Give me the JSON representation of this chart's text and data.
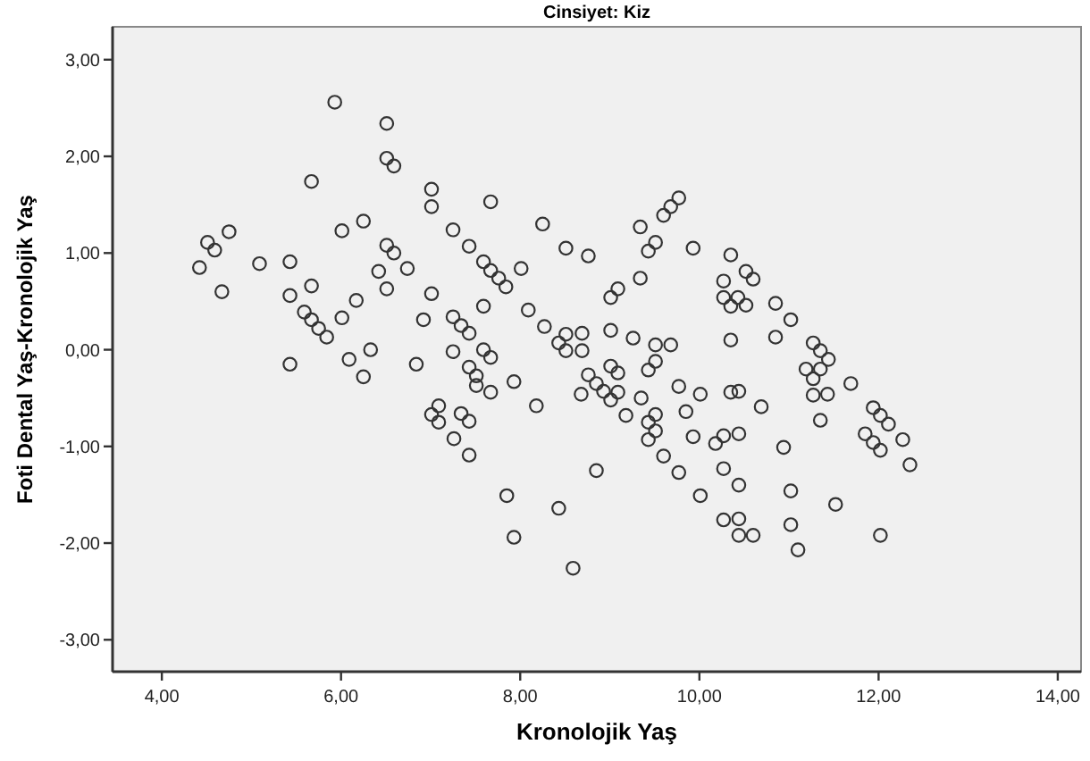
{
  "chart_data": {
    "type": "scatter",
    "title": "Cinsiyet: Kiz",
    "xlabel": "Kronolojik Yaş",
    "ylabel": "Foti Dental Yaş-Kronolojik Yaş",
    "marker": "circle",
    "grid": false,
    "xlim": [
      3.45,
      14.26
    ],
    "ylim": [
      -3.33,
      3.34
    ],
    "xticks": [
      {
        "value": 4,
        "label": "4,00"
      },
      {
        "value": 6,
        "label": "6,00"
      },
      {
        "value": 8,
        "label": "8,00"
      },
      {
        "value": 10,
        "label": "10,00"
      },
      {
        "value": 12,
        "label": "12,00"
      },
      {
        "value": 14,
        "label": "14,00"
      }
    ],
    "yticks": [
      {
        "value": -3,
        "label": "-3,00"
      },
      {
        "value": -2,
        "label": "-2,00"
      },
      {
        "value": -1,
        "label": "-1,00"
      },
      {
        "value": 0,
        "label": "0,00"
      },
      {
        "value": 1,
        "label": "1,00"
      },
      {
        "value": 2,
        "label": "2,00"
      },
      {
        "value": 3,
        "label": "3,00"
      }
    ],
    "series": [
      {
        "color": "#333333",
        "x": [
          4.42,
          4.51,
          4.59,
          4.75,
          4.67,
          5.09,
          5.43,
          5.43,
          5.67,
          5.59,
          5.67,
          5.75,
          5.84,
          5.67,
          5.93,
          6.01,
          6.25,
          6.51,
          6.51,
          6.59,
          6.51,
          6.59,
          6.42,
          6.51,
          6.74,
          6.17,
          6.01,
          6.09,
          6.33,
          5.43,
          6.25,
          7.01,
          7.01,
          7.67,
          7.25,
          7.43,
          8.25,
          8.51,
          8.76,
          7.59,
          7.67,
          7.76,
          7.84,
          8.01,
          7.01,
          6.92,
          7.59,
          7.25,
          7.34,
          7.43,
          7.25,
          7.59,
          7.67,
          7.43,
          6.84,
          8.09,
          8.27,
          8.43,
          8.51,
          8.69,
          8.51,
          8.69,
          8.76,
          9.01,
          9.09,
          9.01,
          9.26,
          9.01,
          9.09,
          9.51,
          9.68,
          9.51,
          9.43,
          9.34,
          9.34,
          9.43,
          9.51,
          9.6,
          9.68,
          9.77,
          9.93,
          10.35,
          10.52,
          10.27,
          10.27,
          10.43,
          10.35,
          10.52,
          10.35,
          10.6,
          10.85,
          11.02,
          10.85,
          11.27,
          11.35,
          11.44,
          11.19,
          11.35,
          11.27,
          11.69,
          11.27,
          11.43,
          11.35,
          10.69,
          10.44,
          11.94,
          12.02,
          12.11,
          11.85,
          11.94,
          12.02,
          12.27,
          12.35,
          10.44,
          10.94,
          10.44,
          11.02,
          11.52,
          10.44,
          11.02,
          10.44,
          10.6,
          11.1,
          12.02,
          7.51,
          7.51,
          7.67,
          7.09,
          7.01,
          7.09,
          7.34,
          7.43,
          7.26,
          7.43,
          7.93,
          8.18,
          7.85,
          7.93,
          8.43,
          8.59,
          8.85,
          8.68,
          8.85,
          8.93,
          9.01,
          9.09,
          9.18,
          9.35,
          9.43,
          9.51,
          9.51,
          9.43,
          9.6,
          9.77,
          9.77,
          9.85,
          10.01,
          9.93,
          10.18,
          10.27,
          10.35,
          10.27,
          10.01,
          10.27
        ],
        "values": [
          0.85,
          1.11,
          1.03,
          1.22,
          0.6,
          0.89,
          0.91,
          0.56,
          0.66,
          0.39,
          0.31,
          0.22,
          0.13,
          1.74,
          2.56,
          1.23,
          1.33,
          2.34,
          1.98,
          1.9,
          1.08,
          1.0,
          0.81,
          0.63,
          0.84,
          0.51,
          0.33,
          -0.1,
          0.0,
          -0.15,
          -0.28,
          1.66,
          1.48,
          1.53,
          1.24,
          1.07,
          1.3,
          1.05,
          0.97,
          0.91,
          0.82,
          0.74,
          0.65,
          0.84,
          0.58,
          0.31,
          0.45,
          0.34,
          0.25,
          0.17,
          -0.02,
          0.0,
          -0.08,
          -0.18,
          -0.15,
          0.41,
          0.24,
          0.07,
          0.16,
          0.17,
          -0.01,
          -0.01,
          -0.26,
          0.54,
          0.63,
          0.2,
          0.12,
          -0.17,
          -0.24,
          0.05,
          0.05,
          -0.12,
          -0.21,
          0.74,
          1.27,
          1.02,
          1.11,
          1.39,
          1.48,
          1.57,
          1.05,
          0.98,
          0.81,
          0.71,
          0.54,
          0.54,
          0.45,
          0.46,
          0.1,
          0.73,
          0.48,
          0.31,
          0.13,
          0.07,
          -0.01,
          -0.1,
          -0.2,
          -0.2,
          -0.3,
          -0.35,
          -0.47,
          -0.46,
          -0.73,
          -0.59,
          -0.43,
          -0.6,
          -0.68,
          -0.77,
          -0.87,
          -0.96,
          -1.04,
          -0.93,
          -1.19,
          -0.87,
          -1.01,
          -1.4,
          -1.46,
          -1.6,
          -1.75,
          -1.81,
          -1.92,
          -1.92,
          -2.07,
          -1.92,
          -0.27,
          -0.37,
          -0.44,
          -0.58,
          -0.67,
          -0.75,
          -0.66,
          -0.74,
          -0.92,
          -1.09,
          -0.33,
          -0.58,
          -1.51,
          -1.94,
          -1.64,
          -2.26,
          -1.25,
          -0.46,
          -0.35,
          -0.43,
          -0.52,
          -0.44,
          -0.68,
          -0.5,
          -0.75,
          -0.67,
          -0.84,
          -0.93,
          -1.1,
          -1.27,
          -0.38,
          -0.64,
          -0.46,
          -0.9,
          -0.97,
          -0.89,
          -0.44,
          -1.23,
          -1.51,
          -1.76
        ]
      }
    ]
  }
}
